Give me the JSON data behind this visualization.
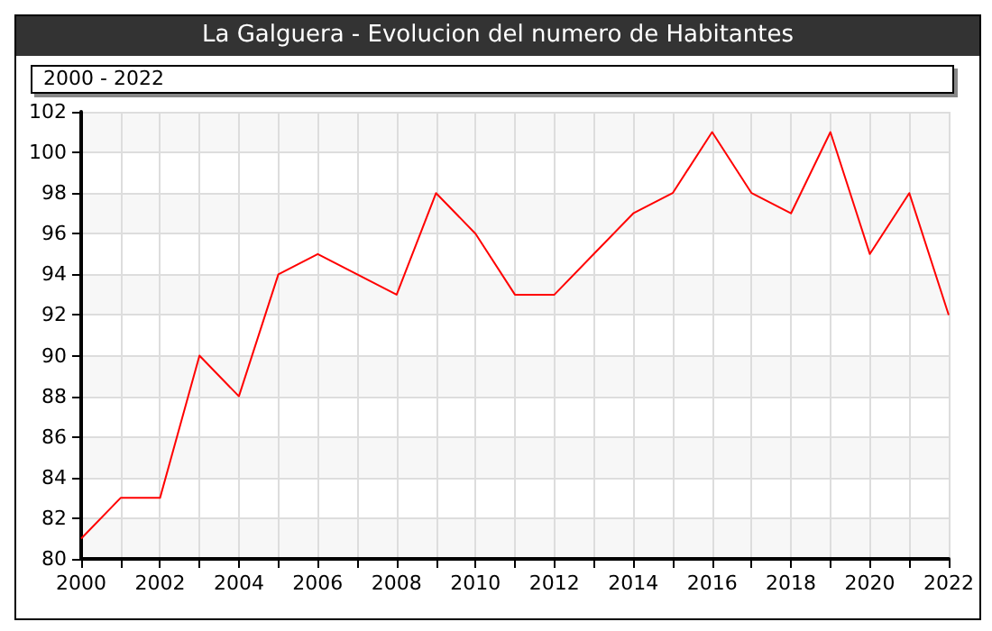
{
  "chart_data": {
    "type": "line",
    "title": "La Galguera - Evolucion del numero de Habitantes",
    "subtitle": "2000 - 2022",
    "x": [
      2000,
      2001,
      2002,
      2003,
      2004,
      2005,
      2006,
      2007,
      2008,
      2009,
      2010,
      2011,
      2012,
      2013,
      2014,
      2015,
      2016,
      2017,
      2018,
      2019,
      2020,
      2021,
      2022
    ],
    "series": [
      {
        "color": "#ff0000",
        "values": [
          81,
          83,
          83,
          90,
          88,
          94,
          95,
          94,
          93,
          98,
          96,
          93,
          93,
          95,
          97,
          98,
          101,
          98,
          97,
          101,
          95,
          98,
          92
        ]
      }
    ],
    "xlim": [
      2000,
      2022
    ],
    "xticks": [
      2000,
      {
        "value": 2001,
        "label": null
      },
      2002,
      {
        "value": 2003,
        "label": null
      },
      2004,
      {
        "value": 2005,
        "label": null
      },
      2006,
      {
        "value": 2007,
        "label": null
      },
      2008,
      {
        "value": 2009,
        "label": null
      },
      2010,
      {
        "value": 2011,
        "label": null
      },
      2012,
      {
        "value": 2013,
        "label": null
      },
      2014,
      {
        "value": 2015,
        "label": null
      },
      2016,
      {
        "value": 2017,
        "label": null
      },
      2018,
      {
        "value": 2019,
        "label": null
      },
      2020,
      {
        "value": 2021,
        "label": null
      },
      2022
    ],
    "ylim": [
      80,
      102
    ],
    "yticks": [
      80,
      82,
      84,
      86,
      88,
      90,
      92,
      94,
      96,
      98,
      100,
      102
    ],
    "grid": true,
    "marker": "none",
    "line_style": "solid"
  }
}
